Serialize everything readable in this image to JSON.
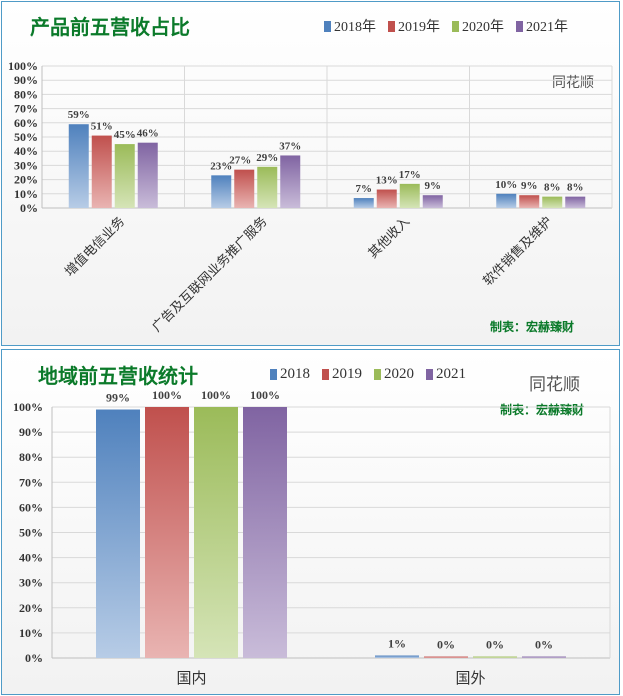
{
  "chart_data": [
    {
      "type": "bar",
      "title": "产品前五营收占比",
      "watermark": "同花顺",
      "maker": "制表：宏赫臻财",
      "categories": [
        "增值电信业务",
        "广告及互联网业务推广服务",
        "其他收入",
        "软件销售及维护"
      ],
      "series": [
        {
          "name": "2018年",
          "values": [
            59,
            23,
            7,
            10
          ],
          "labels": [
            "59%",
            "23%",
            "7%",
            "10%"
          ]
        },
        {
          "name": "2019年",
          "values": [
            51,
            27,
            13,
            9
          ],
          "labels": [
            "51%",
            "27%",
            "13%",
            "9%"
          ]
        },
        {
          "name": "2020年",
          "values": [
            45,
            29,
            17,
            8
          ],
          "labels": [
            "45%",
            "29%",
            "17%",
            "8%"
          ]
        },
        {
          "name": "2021年",
          "values": [
            46,
            37,
            9,
            8
          ],
          "labels": [
            "46%",
            "37%",
            "9%",
            "8%"
          ]
        }
      ],
      "yticks": [
        "0%",
        "10%",
        "20%",
        "30%",
        "40%",
        "50%",
        "60%",
        "70%",
        "80%",
        "90%",
        "100%"
      ],
      "ylim": [
        0,
        100
      ],
      "grid": true,
      "legend_position": "top-right"
    },
    {
      "type": "bar",
      "title": "地域前五营收统计",
      "watermark": "同花顺",
      "maker": "制表：宏赫臻财",
      "categories": [
        "国内",
        "国外"
      ],
      "series": [
        {
          "name": "2018",
          "values": [
            99,
            1
          ],
          "labels": [
            "99%",
            "1%"
          ]
        },
        {
          "name": "2019",
          "values": [
            100,
            0
          ],
          "labels": [
            "100%",
            "0%"
          ]
        },
        {
          "name": "2020",
          "values": [
            100,
            0
          ],
          "labels": [
            "100%",
            "0%"
          ]
        },
        {
          "name": "2021",
          "values": [
            100,
            0
          ],
          "labels": [
            "100%",
            "0%"
          ]
        }
      ],
      "yticks": [
        "0%",
        "10%",
        "20%",
        "30%",
        "40%",
        "50%",
        "60%",
        "70%",
        "80%",
        "90%",
        "100%"
      ],
      "ylim": [
        0,
        100
      ],
      "grid": true,
      "legend_position": "top"
    }
  ],
  "colors": {
    "series": [
      "#4f81bd",
      "#c0504d",
      "#9bbb59",
      "#8064a2"
    ],
    "series_light": [
      "#b7cce6",
      "#e9b4b2",
      "#d5e4b7",
      "#c9bcd9"
    ],
    "title": "#0b7a2a",
    "border": "#4f9bc7"
  }
}
